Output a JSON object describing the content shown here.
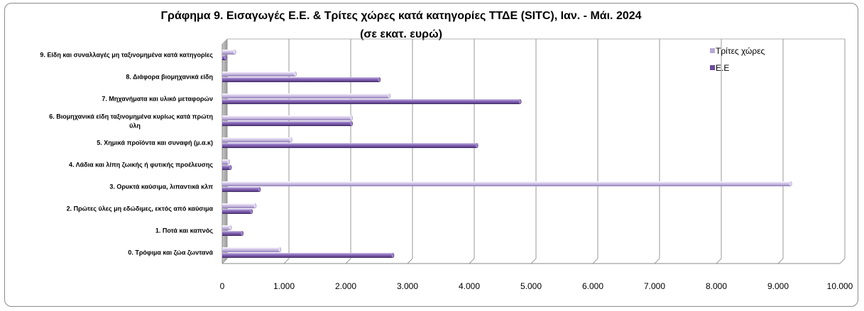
{
  "chart_data": {
    "type": "bar",
    "orientation": "horizontal",
    "title_line1": "Γράφημα  9. Εισαγωγές Ε.Ε. & Τρίτες χώρες κατά κατηγορίες ΤΤΔΕ (SITC), Ιαν. -  Μάι. 2024",
    "title_line2": "(σε εκατ. ευρώ)",
    "categories": [
      [
        "9. Είδη και συναλλαγές μη ταξινομημένα κατά  κατηγορίες"
      ],
      [
        "8. Διάφορα βιομηχανικά είδη"
      ],
      [
        "7. Μηχανήματα και υλικό μεταφορών"
      ],
      [
        "6. Βιομηχανικά είδη ταξινομημένα κυρίως κατά πρώτη",
        "ύλη"
      ],
      [
        "5. Χημικά προϊόντα και συναφή (μ.α.κ)"
      ],
      [
        "4. Λάδια και λίπη ζωικής ή φυτικής προέλευσης"
      ],
      [
        "3. Ορυκτά καύσιμα, λιπαντικά κλπ"
      ],
      [
        "2. Πρώτες ύλες μη εδώδιμες, εκτός από καύσιμα"
      ],
      [
        "1. Ποτά και καπνός"
      ],
      [
        "0. Τρόφιμα και ζώα ζωντανά"
      ]
    ],
    "series": [
      {
        "name": "Τρίτες χώρες",
        "color": "#b7a8d4",
        "values": [
          200,
          1180,
          2700,
          2090,
          1110,
          100,
          9200,
          530,
          130,
          930
        ]
      },
      {
        "name": "Ε.Ε",
        "color": "#6b4c9a",
        "values": [
          50,
          2540,
          4820,
          2090,
          4120,
          130,
          600,
          470,
          320,
          2760
        ]
      }
    ],
    "xlim": [
      0,
      10000
    ],
    "xticks": [
      "0",
      "1.000",
      "2.000",
      "3.000",
      "4.000",
      "5.000",
      "6.000",
      "7.000",
      "8.000",
      "9.000",
      "10.000"
    ],
    "grid": true,
    "legend_position": "top-right"
  }
}
